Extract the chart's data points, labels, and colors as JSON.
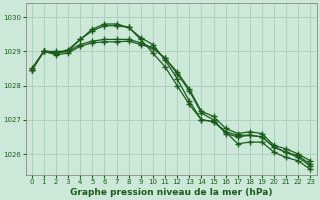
{
  "title": "Graphe pression niveau de la mer (hPa)",
  "background_color": "#cce8d8",
  "grid_color": "#aaccb8",
  "line_color": "#1a5c1a",
  "xlim": [
    -0.5,
    23.5
  ],
  "ylim": [
    1025.4,
    1030.4
  ],
  "yticks": [
    1026,
    1027,
    1028,
    1029,
    1030
  ],
  "xticks": [
    0,
    1,
    2,
    3,
    4,
    5,
    6,
    7,
    8,
    9,
    10,
    11,
    12,
    13,
    14,
    15,
    16,
    17,
    18,
    19,
    20,
    21,
    22,
    23
  ],
  "series": [
    [
      1028.45,
      1029.0,
      1028.95,
      1029.0,
      1029.35,
      1029.6,
      1029.75,
      1029.75,
      1029.7,
      1029.4,
      1029.2,
      1028.75,
      1028.2,
      1027.55,
      1027.0,
      1026.95,
      1026.65,
      1026.55,
      1026.55,
      1026.5,
      1026.2,
      1026.05,
      1025.95,
      1025.7
    ],
    [
      1028.45,
      1029.0,
      1028.95,
      1029.05,
      1029.35,
      1029.65,
      1029.8,
      1029.8,
      1029.7,
      1029.35,
      1028.95,
      1028.55,
      1028.0,
      1027.45,
      1027.0,
      1026.95,
      1026.65,
      1026.3,
      1026.35,
      1026.35,
      1026.05,
      1025.9,
      1025.8,
      1025.55
    ],
    [
      1028.5,
      1029.0,
      1029.0,
      1029.0,
      1029.2,
      1029.3,
      1029.35,
      1029.35,
      1029.35,
      1029.25,
      1029.1,
      1028.8,
      1028.4,
      1027.9,
      1027.25,
      1027.1,
      1026.75,
      1026.6,
      1026.65,
      1026.6,
      1026.25,
      1026.15,
      1026.0,
      1025.8
    ],
    [
      1028.45,
      1029.0,
      1028.9,
      1028.95,
      1029.15,
      1029.25,
      1029.28,
      1029.28,
      1029.3,
      1029.2,
      1029.1,
      1028.8,
      1028.35,
      1027.85,
      1027.2,
      1027.0,
      1026.6,
      1026.5,
      1026.55,
      1026.5,
      1026.2,
      1026.05,
      1025.9,
      1025.65
    ]
  ]
}
